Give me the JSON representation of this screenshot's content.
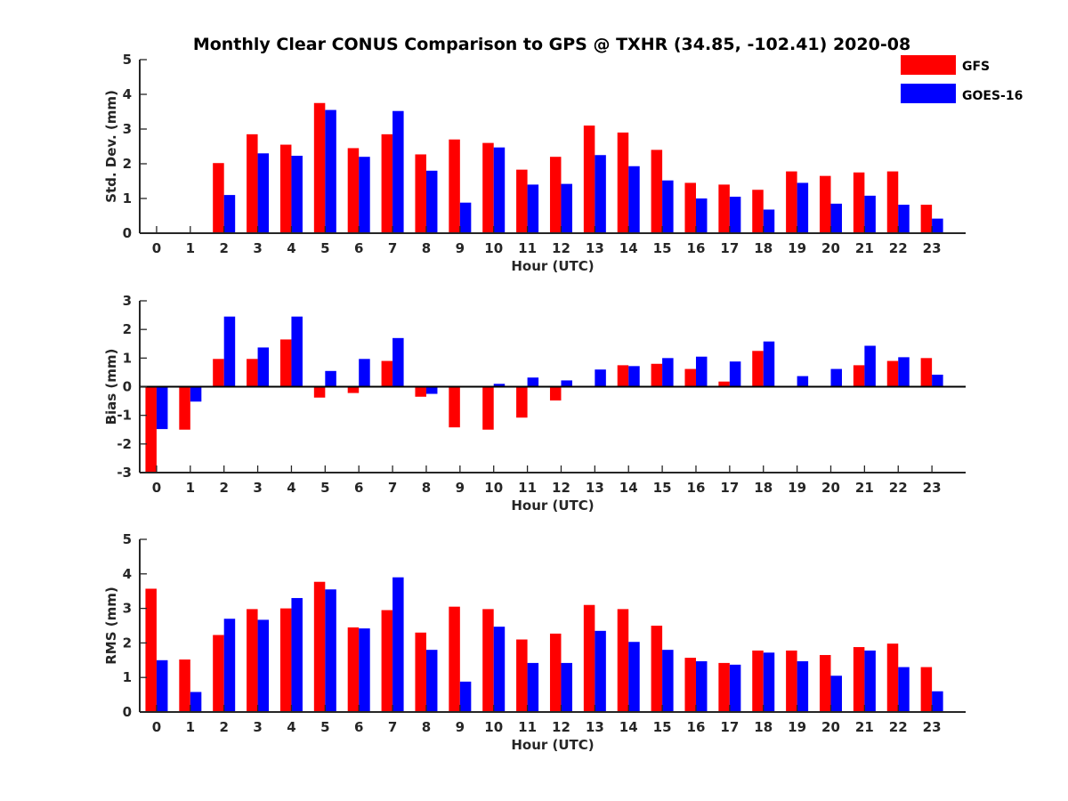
{
  "title": "Monthly Clear CONUS Comparison to GPS @ TXHR (34.85, -102.41) 2020-08",
  "legend": [
    {
      "name": "GFS",
      "color": "#ff0000"
    },
    {
      "name": "GOES-16",
      "color": "#0000ff"
    }
  ],
  "chart_data": [
    {
      "type": "bar",
      "xlabel": "Hour (UTC)",
      "ylabel": "Std. Dev. (mm)",
      "ylim": [
        0,
        5
      ],
      "yticks": [
        "0",
        "1",
        "2",
        "3",
        "4",
        "5"
      ],
      "categories": [
        "0",
        "1",
        "2",
        "3",
        "4",
        "5",
        "6",
        "7",
        "8",
        "9",
        "10",
        "11",
        "12",
        "13",
        "14",
        "15",
        "16",
        "17",
        "18",
        "19",
        "20",
        "21",
        "22",
        "23"
      ],
      "series": [
        {
          "name": "GFS",
          "values": [
            0,
            0,
            2.02,
            2.85,
            2.55,
            3.75,
            2.45,
            2.85,
            2.27,
            2.7,
            2.6,
            1.83,
            2.2,
            3.1,
            2.9,
            2.4,
            1.45,
            1.4,
            1.25,
            1.78,
            1.65,
            1.75,
            1.78,
            0.82
          ]
        },
        {
          "name": "GOES-16",
          "values": [
            0,
            0,
            1.1,
            2.3,
            2.23,
            3.55,
            2.2,
            3.52,
            1.8,
            0.88,
            2.47,
            1.4,
            1.42,
            2.25,
            1.93,
            1.52,
            1.0,
            1.05,
            0.68,
            1.45,
            0.85,
            1.08,
            0.82,
            0.42
          ]
        }
      ]
    },
    {
      "type": "bar",
      "xlabel": "Hour (UTC)",
      "ylabel": "Bias (mm)",
      "ylim": [
        -3,
        3
      ],
      "yticks": [
        "-3",
        "-2",
        "-1",
        "0",
        "1",
        "2",
        "3"
      ],
      "categories": [
        "0",
        "1",
        "2",
        "3",
        "4",
        "5",
        "6",
        "7",
        "8",
        "9",
        "10",
        "11",
        "12",
        "13",
        "14",
        "15",
        "16",
        "17",
        "18",
        "19",
        "20",
        "21",
        "22",
        "23"
      ],
      "series": [
        {
          "name": "GFS",
          "values": [
            -3.0,
            -1.5,
            0.97,
            0.97,
            1.65,
            -0.38,
            -0.22,
            0.9,
            -0.35,
            -1.42,
            -1.5,
            -1.08,
            -0.48,
            0.03,
            0.75,
            0.8,
            0.62,
            0.18,
            1.25,
            0,
            0,
            0.75,
            0.9,
            1.0
          ]
        },
        {
          "name": "GOES-16",
          "values": [
            -1.48,
            -0.52,
            2.45,
            1.37,
            2.45,
            0.55,
            0.97,
            1.7,
            -0.25,
            0,
            0.1,
            0.32,
            0.22,
            0.6,
            0.72,
            1.0,
            1.05,
            0.88,
            1.58,
            0.37,
            0.62,
            1.43,
            1.03,
            0.42
          ]
        }
      ]
    },
    {
      "type": "bar",
      "xlabel": "Hour (UTC)",
      "ylabel": "RMS (mm)",
      "ylim": [
        0,
        5
      ],
      "yticks": [
        "0",
        "1",
        "2",
        "3",
        "4",
        "5"
      ],
      "categories": [
        "0",
        "1",
        "2",
        "3",
        "4",
        "5",
        "6",
        "7",
        "8",
        "9",
        "10",
        "11",
        "12",
        "13",
        "14",
        "15",
        "16",
        "17",
        "18",
        "19",
        "20",
        "21",
        "22",
        "23"
      ],
      "series": [
        {
          "name": "GFS",
          "values": [
            3.57,
            1.52,
            2.23,
            2.98,
            3.0,
            3.77,
            2.45,
            2.95,
            2.3,
            3.05,
            2.98,
            2.1,
            2.27,
            3.1,
            2.98,
            2.5,
            1.57,
            1.42,
            1.78,
            1.78,
            1.65,
            1.88,
            1.98,
            1.3
          ]
        },
        {
          "name": "GOES-16",
          "values": [
            1.5,
            0.58,
            2.7,
            2.67,
            3.3,
            3.55,
            2.42,
            3.9,
            1.8,
            0.88,
            2.47,
            1.42,
            1.42,
            2.35,
            2.03,
            1.8,
            1.47,
            1.37,
            1.72,
            1.47,
            1.05,
            1.78,
            1.3,
            0.6
          ]
        }
      ]
    }
  ]
}
